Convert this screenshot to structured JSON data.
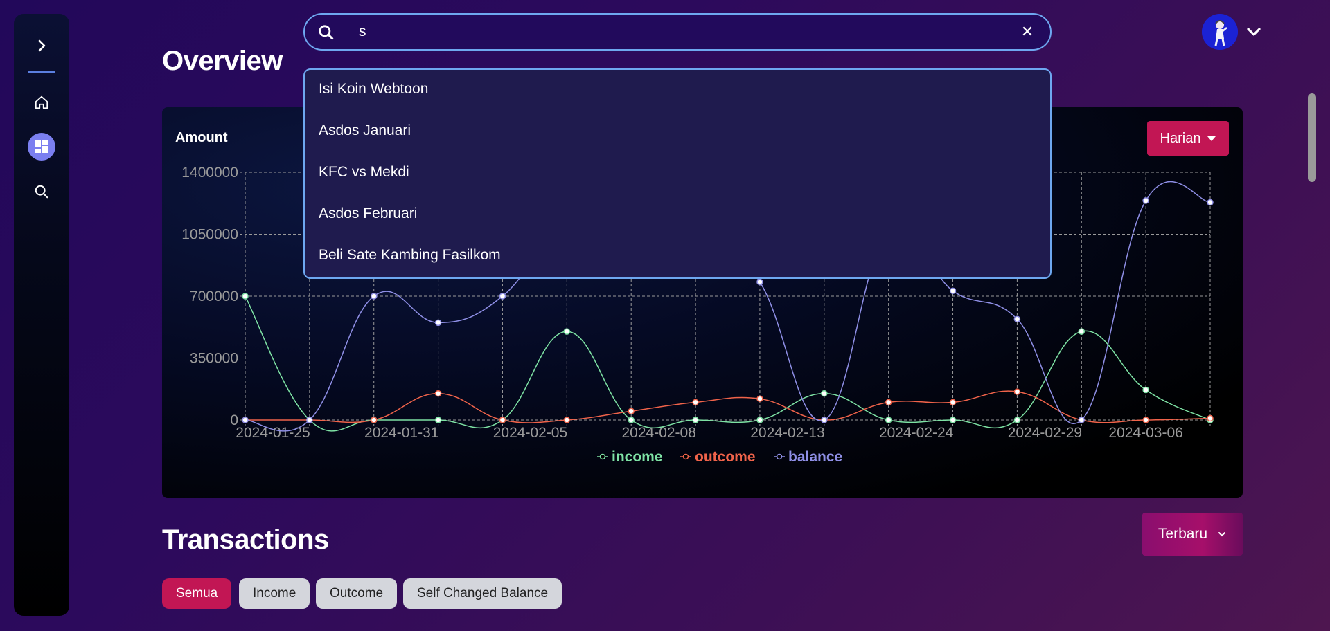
{
  "search": {
    "value": "s",
    "placeholder": ""
  },
  "suggestions": [
    "Isi Koin Webtoon",
    "Asdos Januari",
    "KFC vs Mekdi",
    "Asdos Februari",
    "Beli Sate Kambing Fasilkom"
  ],
  "overview": {
    "title": "Overview",
    "amount_label": "Amount",
    "period": "Harian"
  },
  "transactions": {
    "title": "Transactions",
    "sort": "Terbaru",
    "filters": [
      "Semua",
      "Income",
      "Outcome",
      "Self Changed Balance"
    ]
  },
  "colors": {
    "income": "#7ee2a4",
    "outcome": "#f0634a",
    "balance": "#8f8fe6",
    "accent": "#c21654"
  },
  "chart_data": {
    "type": "line",
    "ylim": [
      0,
      1400000
    ],
    "yticks": [
      "1400000",
      "1050000",
      "700000",
      "350000",
      "0"
    ],
    "xticks": [
      "2024-01-25",
      "2024-01-31",
      "2024-02-05",
      "2024-02-08",
      "2024-02-13",
      "2024-02-24",
      "2024-02-29",
      "2024-03-06"
    ],
    "series": [
      {
        "name": "income",
        "values": [
          700000,
          0,
          0,
          0,
          0,
          500000,
          0,
          0,
          0,
          150000,
          0,
          0,
          0,
          500000,
          170000,
          0
        ]
      },
      {
        "name": "outcome",
        "values": [
          0,
          0,
          0,
          150000,
          0,
          0,
          50000,
          100000,
          120000,
          0,
          100000,
          100000,
          160000,
          0,
          0,
          10000
        ]
      },
      {
        "name": "balance",
        "values": [
          0,
          0,
          700000,
          550000,
          700000,
          null,
          null,
          null,
          780000,
          0,
          null,
          730000,
          570000,
          0,
          1240000,
          1230000
        ]
      }
    ]
  }
}
